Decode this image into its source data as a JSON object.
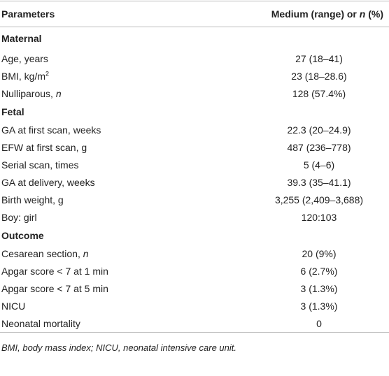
{
  "table": {
    "header": {
      "param": "Parameters",
      "value": [
        {
          "text": "Medium (range) or "
        },
        {
          "text": "n",
          "italic": true
        },
        {
          "text": " (%)"
        }
      ]
    },
    "sections": [
      {
        "title": "Maternal",
        "rows": [
          {
            "label": [
              {
                "text": "Age, years"
              }
            ],
            "value": "27 (18–41)"
          },
          {
            "label": [
              {
                "text": "BMI, kg/m"
              },
              {
                "text": "2",
                "sup": true
              }
            ],
            "value": "23 (18–28.6)"
          },
          {
            "label": [
              {
                "text": "Nulliparous, "
              },
              {
                "text": "n",
                "italic": true
              }
            ],
            "value": "128 (57.4%)"
          }
        ]
      },
      {
        "title": "Fetal",
        "rows": [
          {
            "label": [
              {
                "text": "GA at first scan, weeks"
              }
            ],
            "value": "22.3 (20–24.9)"
          },
          {
            "label": [
              {
                "text": "EFW at first scan, g"
              }
            ],
            "value": "487 (236–778)"
          },
          {
            "label": [
              {
                "text": "Serial scan, times"
              }
            ],
            "value": "5 (4–6)"
          },
          {
            "label": [
              {
                "text": "GA at delivery, weeks"
              }
            ],
            "value": "39.3 (35–41.1)"
          },
          {
            "label": [
              {
                "text": "Birth weight, g"
              }
            ],
            "value": "3,255 (2,409–3,688)"
          },
          {
            "label": [
              {
                "text": "Boy: girl"
              }
            ],
            "value": "120:103"
          }
        ]
      },
      {
        "title": "Outcome",
        "rows": [
          {
            "label": [
              {
                "text": "Cesarean section, "
              },
              {
                "text": "n",
                "italic": true
              }
            ],
            "value": "20 (9%)"
          },
          {
            "label": [
              {
                "text": "Apgar score < 7 at 1 min"
              }
            ],
            "value": "6 (2.7%)"
          },
          {
            "label": [
              {
                "text": "Apgar score < 7 at 5 min"
              }
            ],
            "value": "3 (1.3%)"
          },
          {
            "label": [
              {
                "text": "NICU"
              }
            ],
            "value": "3 (1.3%)"
          },
          {
            "label": [
              {
                "text": "Neonatal mortality"
              }
            ],
            "value": "0"
          }
        ]
      }
    ],
    "footnote": "BMI, body mass index; NICU, neonatal intensive care unit."
  }
}
